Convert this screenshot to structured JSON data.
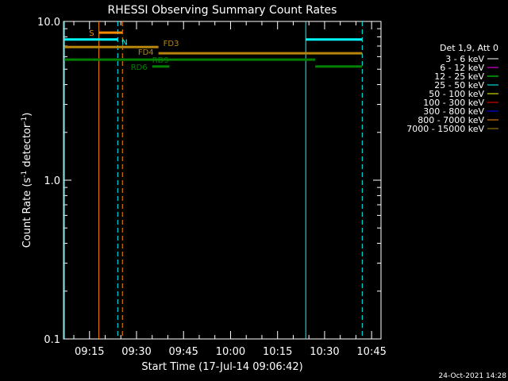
{
  "chart_data": {
    "type": "line",
    "title": "RHESSI Observing Summary Count Rates",
    "xlabel": "Start Time (17-Jul-14 09:06:42)",
    "ylabel": "Count Rate (s⁻¹ detector⁻¹)",
    "y_scale": "log",
    "ylim": [
      0.1,
      10.0
    ],
    "xlim": [
      "09:06:42",
      "10:48:00"
    ],
    "x_ticks": [
      "09:15",
      "09:30",
      "09:45",
      "10:00",
      "10:15",
      "10:30",
      "10:45"
    ],
    "y_ticks": [
      "10.0",
      "1.0",
      "0.1"
    ],
    "timestamp": "24-Oct-2021 14:28",
    "legend": {
      "placement": "right",
      "header": "Det 1,9, Att 0",
      "entries": [
        {
          "label": "3 - 6 keV",
          "color": "#ffffff"
        },
        {
          "label": "6 - 12 keV",
          "color": "#ff00ff"
        },
        {
          "label": "12 - 25 keV",
          "color": "#00ff00"
        },
        {
          "label": "25 - 50 keV",
          "color": "#00ffff"
        },
        {
          "label": "50 - 100 keV",
          "color": "#ffff00"
        },
        {
          "label": "100 - 300 keV",
          "color": "#ff0000"
        },
        {
          "label": "300 - 800 keV",
          "color": "#0000ff"
        },
        {
          "label": "800 - 7000 keV",
          "color": "#ff8c00"
        },
        {
          "label": "7000 - 15000 keV",
          "color": "#b8860b"
        }
      ]
    },
    "vertical_markers": [
      {
        "time": "09:07:00",
        "color": "#00ffff",
        "style": "solid"
      },
      {
        "time": "09:24:00",
        "color": "#00ffff",
        "style": "dashed"
      },
      {
        "time": "10:24:00",
        "color": "#00ffff",
        "style": "solid"
      },
      {
        "time": "10:42:00",
        "color": "#00ffff",
        "style": "dashed"
      },
      {
        "time": "09:18:00",
        "color": "#ff8c00",
        "style": "solid"
      },
      {
        "time": "09:25:30",
        "color": "#ff8c00",
        "style": "dashed"
      }
    ],
    "segments": [
      {
        "label": "S",
        "start": "09:18:00",
        "end": "09:25:30",
        "value": 8.5,
        "color": "#ff8c00"
      },
      {
        "label": "N",
        "start": "09:07:00",
        "end": "09:24:00",
        "value": 7.7,
        "color": "#00ffff"
      },
      {
        "label": "",
        "start": "10:24:00",
        "end": "10:42:00",
        "value": 7.7,
        "color": "#00ffff"
      },
      {
        "label": "FD3",
        "start": "09:07:00",
        "end": "09:37:00",
        "value": 6.9,
        "color": "#b8860b"
      },
      {
        "label": "FD4",
        "start": "09:37:00",
        "end": "10:42:00",
        "value": 6.3,
        "color": "#b8860b"
      },
      {
        "label": "RD9",
        "start": "09:07:00",
        "end": "10:27:00",
        "value": 5.75,
        "color": "#008000"
      },
      {
        "label": "RD6",
        "start": "09:35:00",
        "end": "09:40:30",
        "value": 5.2,
        "color": "#008000"
      },
      {
        "label": "",
        "start": "10:27:00",
        "end": "10:42:00",
        "value": 5.2,
        "color": "#008000"
      }
    ]
  }
}
